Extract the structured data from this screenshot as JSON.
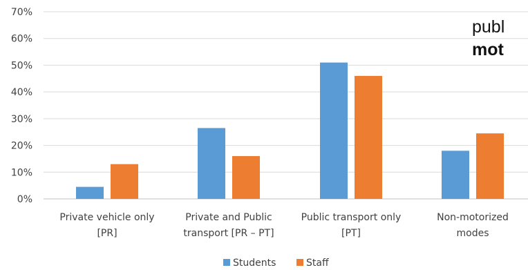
{
  "chart_data": {
    "type": "bar",
    "categories": [
      [
        "Private vehicle only",
        "[PR]"
      ],
      [
        "Private and Public",
        "transport [PR – PT]"
      ],
      [
        "Public transport only",
        "[PT]"
      ],
      [
        "Non-motorized",
        "modes"
      ]
    ],
    "series": [
      {
        "name": "Students",
        "color": "#5B9BD5",
        "values": [
          4.5,
          26.5,
          51,
          18
        ]
      },
      {
        "name": "Staff",
        "color": "#ED7D31",
        "values": [
          13,
          16,
          46,
          24.5
        ]
      }
    ],
    "ylim": [
      0,
      70
    ],
    "yticks": [
      "0%",
      "10%",
      "20%",
      "30%",
      "40%",
      "50%",
      "60%",
      "70%"
    ],
    "grid": true,
    "legend_position": "bottom"
  },
  "overlay_text": {
    "line1": "publ",
    "line2": "mot"
  }
}
